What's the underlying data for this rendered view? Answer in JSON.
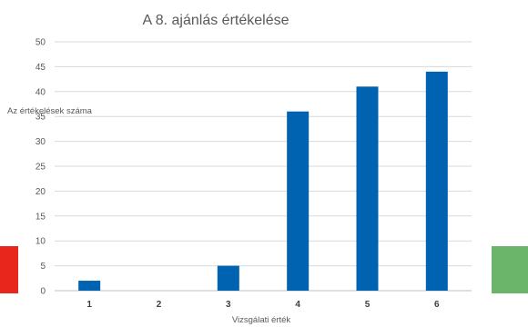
{
  "chart_data": {
    "type": "bar",
    "title": "A 8. ajánlás értékelése",
    "xlabel": "Vizsgálati érték",
    "ylabel": "Az értékelések száma",
    "categories": [
      "1",
      "2",
      "3",
      "4",
      "5",
      "6"
    ],
    "values": [
      2,
      0,
      5,
      36,
      41,
      44
    ],
    "ylim": [
      0,
      50
    ],
    "yticks": [
      "0",
      "5",
      "10",
      "15",
      "20",
      "25",
      "30",
      "35",
      "40",
      "45",
      "50"
    ],
    "grid": true,
    "bar_color": "#0063B1",
    "grid_color": "#D9D9D9"
  },
  "side_swatches": {
    "left_color": "#E8261B",
    "right_color": "#6BB56B"
  }
}
